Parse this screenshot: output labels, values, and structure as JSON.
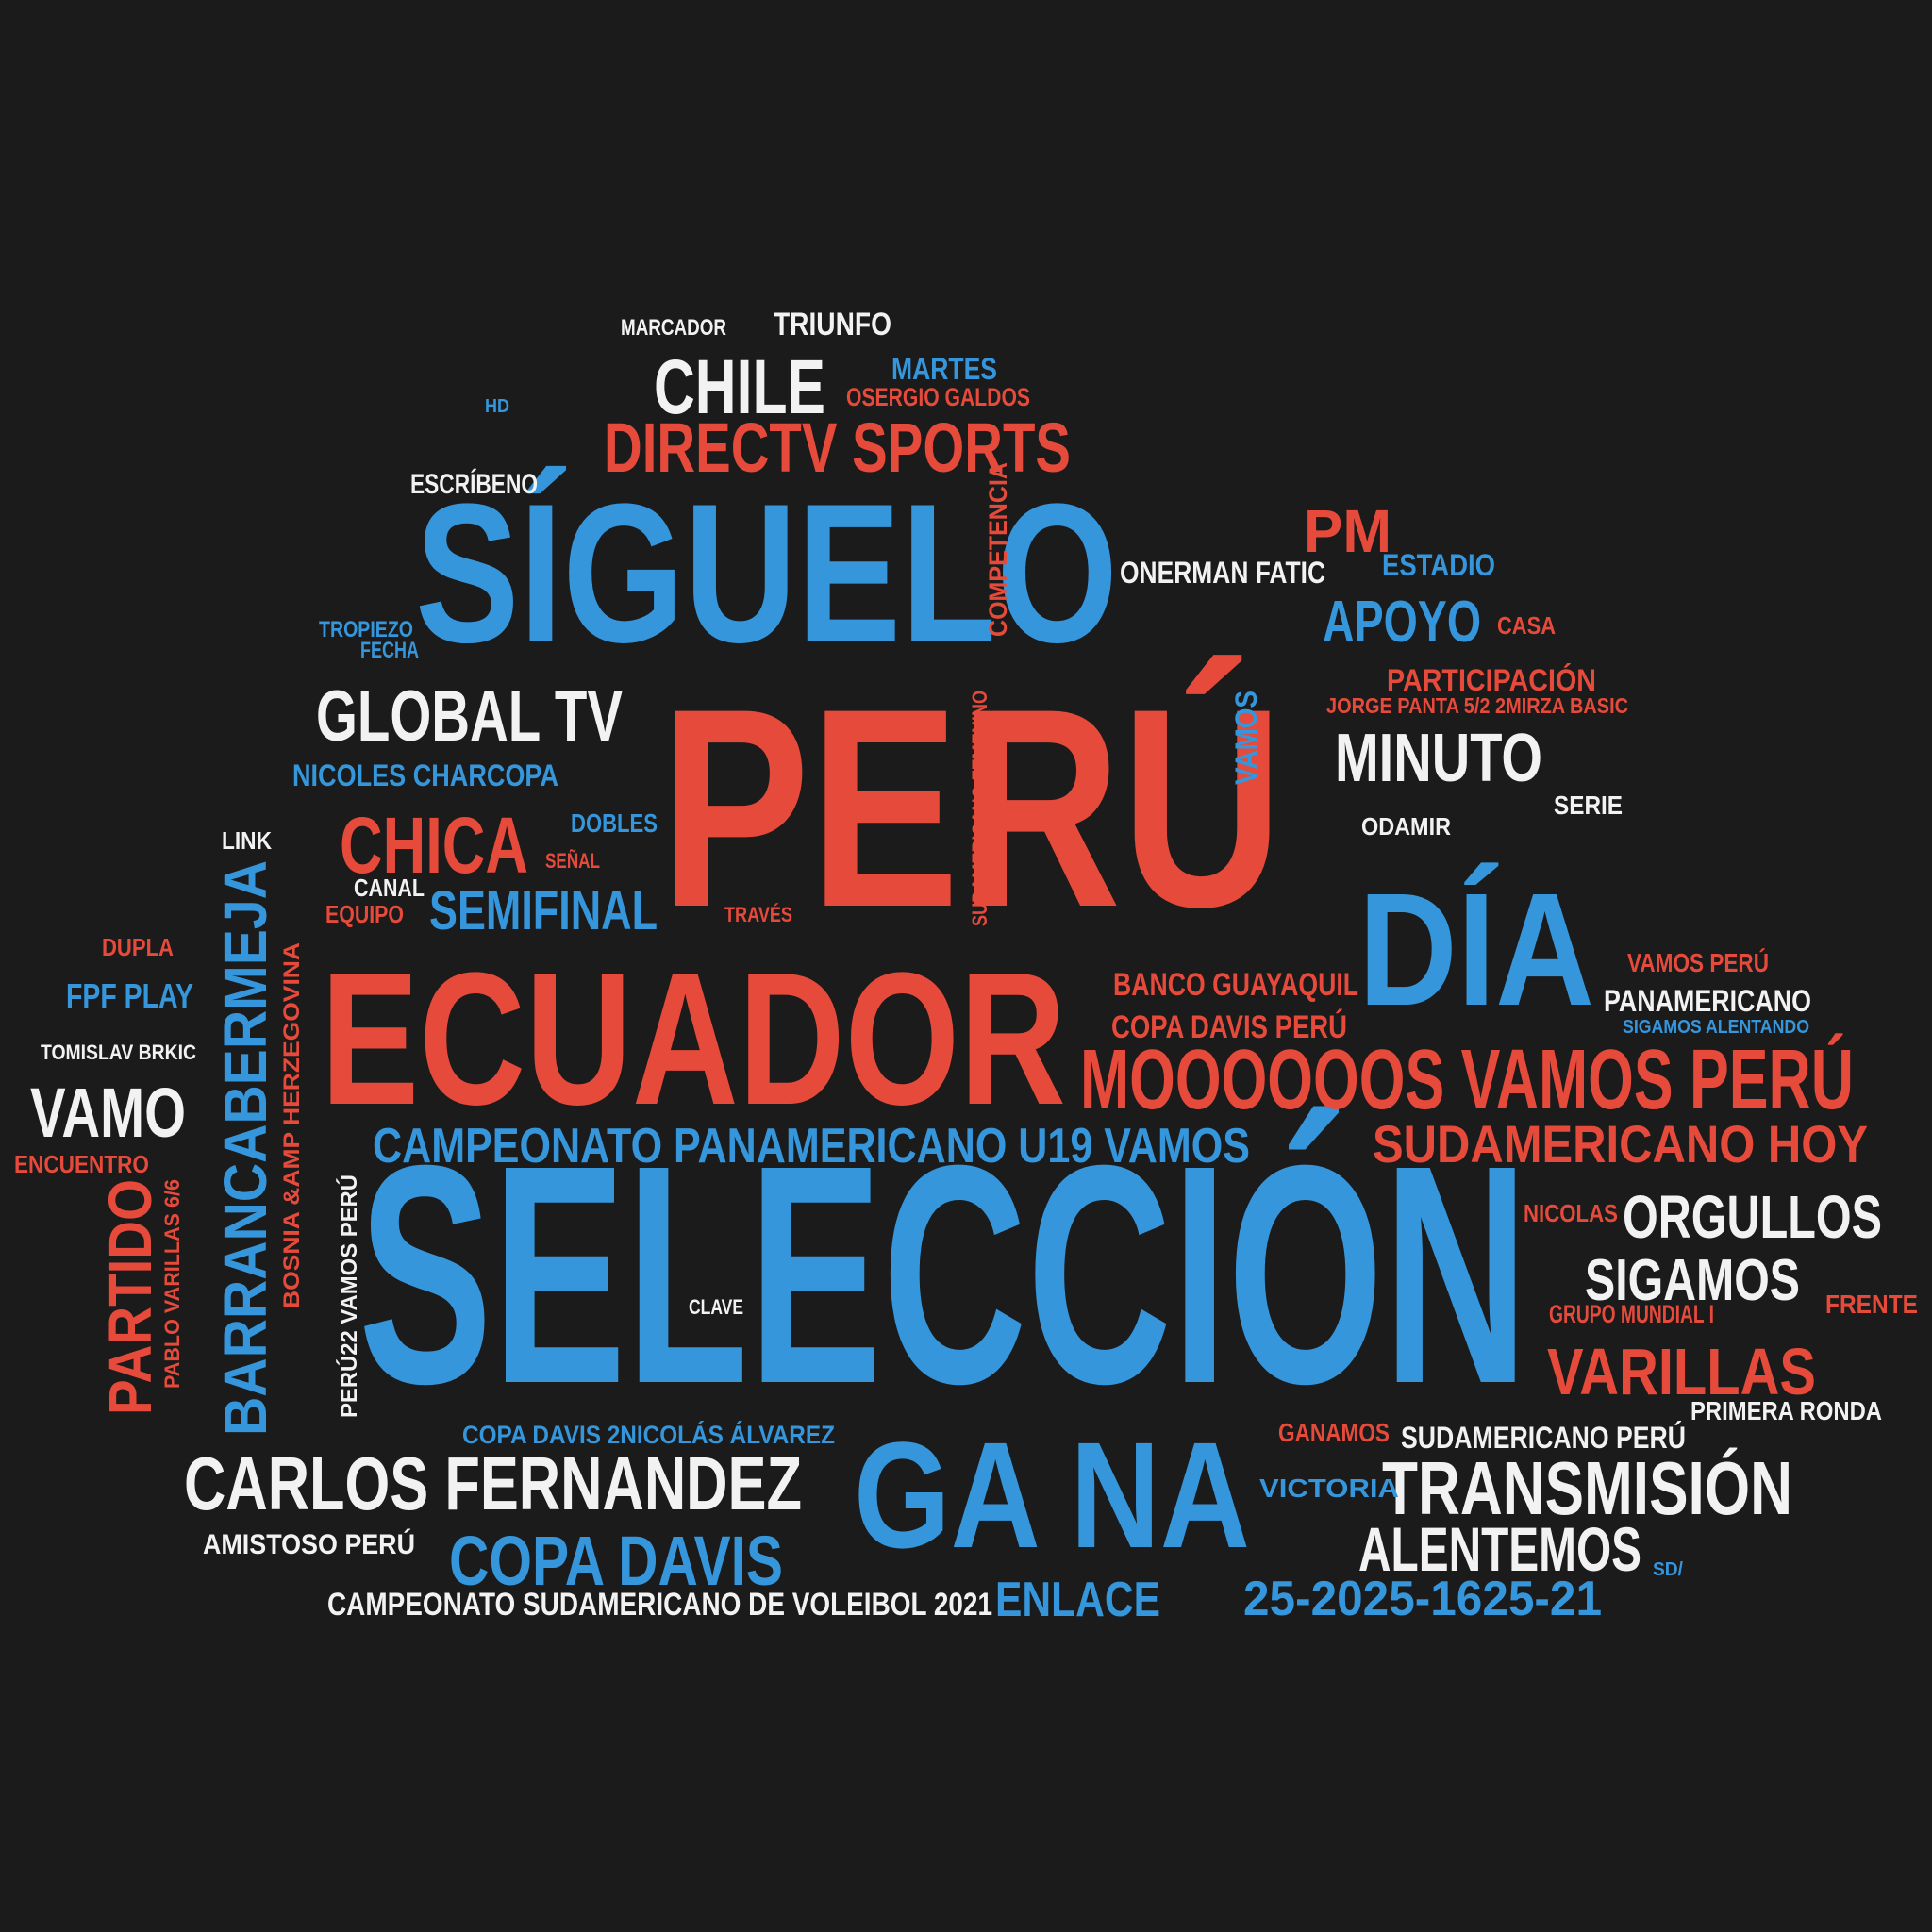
{
  "colors": {
    "background": "#1b1b1b",
    "red": "#e64a3b",
    "blue": "#3596dc",
    "white": "#f2f2f2"
  },
  "words": [
    {
      "text": "PERÚ",
      "color": "red"
    },
    {
      "text": "SELECCIÓN",
      "color": "blue"
    },
    {
      "text": "SÍGUELO",
      "color": "blue"
    },
    {
      "text": "ECUADOR",
      "color": "red"
    },
    {
      "text": "DÍA",
      "color": "blue"
    },
    {
      "text": "GA NA",
      "color": "blue"
    },
    {
      "text": "MOOOOOOS VAMOS PERÚ",
      "color": "red"
    },
    {
      "text": "DIRECTV SPORTS",
      "color": "red"
    },
    {
      "text": "CHILE",
      "color": "white"
    },
    {
      "text": "GLOBAL TV",
      "color": "white"
    },
    {
      "text": "CHICA",
      "color": "red"
    },
    {
      "text": "MINUTO",
      "color": "white"
    },
    {
      "text": "CARLOS FERNANDEZ",
      "color": "white"
    },
    {
      "text": "TRANSMISIÓN",
      "color": "white"
    },
    {
      "text": "BARRANCABERMEJA",
      "color": "blue"
    },
    {
      "text": "ORGULLOS",
      "color": "white"
    },
    {
      "text": "VARILLAS",
      "color": "red"
    },
    {
      "text": "SIGAMOS",
      "color": "white"
    },
    {
      "text": "ALENTEMOS",
      "color": "white"
    },
    {
      "text": "COPA DAVIS",
      "color": "blue"
    },
    {
      "text": "SUDAMERICANO HOY",
      "color": "red"
    },
    {
      "text": "CAMPEONATO PANAMERICANO U19 VAMOS",
      "color": "blue"
    },
    {
      "text": "PARTIDO",
      "color": "red"
    },
    {
      "text": "VAMO",
      "color": "white"
    },
    {
      "text": "SEMIFINAL",
      "color": "blue"
    },
    {
      "text": "APOYO",
      "color": "blue"
    },
    {
      "text": "PM",
      "color": "red"
    },
    {
      "text": "25-2025-1625-21",
      "color": "blue"
    },
    {
      "text": "ENLACE",
      "color": "blue"
    },
    {
      "text": "TRIUNFO",
      "color": "white"
    },
    {
      "text": "MARTES",
      "color": "blue"
    },
    {
      "text": "OSERGIO GALDOS",
      "color": "red"
    },
    {
      "text": "MARCADOR",
      "color": "white"
    },
    {
      "text": "HD",
      "color": "blue"
    },
    {
      "text": "ESCRÍBENO",
      "color": "white"
    },
    {
      "text": "COMPETENCIA",
      "color": "red"
    },
    {
      "text": "ONERMAN FATIC",
      "color": "white"
    },
    {
      "text": "ESTADIO",
      "color": "blue"
    },
    {
      "text": "CASA",
      "color": "red"
    },
    {
      "text": "TROPIEZO",
      "color": "blue"
    },
    {
      "text": "FECHA",
      "color": "blue"
    },
    {
      "text": "PARTICIPACIÓN",
      "color": "red"
    },
    {
      "text": "JORGE PANTA 5/2 2MIRZA BASIC",
      "color": "red"
    },
    {
      "text": "VAMOS",
      "color": "blue"
    },
    {
      "text": "SUDAMERICANO FEMENINO",
      "color": "red"
    },
    {
      "text": "NICOLES CHARCOPA",
      "color": "blue"
    },
    {
      "text": "DOBLES",
      "color": "blue"
    },
    {
      "text": "SEÑAL",
      "color": "red"
    },
    {
      "text": "LINK",
      "color": "white"
    },
    {
      "text": "CANAL",
      "color": "white"
    },
    {
      "text": "EQUIPO",
      "color": "red"
    },
    {
      "text": "TRAVÉS",
      "color": "red"
    },
    {
      "text": "ODAMIR",
      "color": "white"
    },
    {
      "text": "SERIE",
      "color": "white"
    },
    {
      "text": "DUPLA",
      "color": "red"
    },
    {
      "text": "FPF PLAY",
      "color": "blue"
    },
    {
      "text": "TOMISLAV BRKIC",
      "color": "white"
    },
    {
      "text": "ENCUENTRO",
      "color": "red"
    },
    {
      "text": "BOSNIA &AMP HERZEGOVINA",
      "color": "red"
    },
    {
      "text": "PABLO VARILLAS 6/6",
      "color": "red"
    },
    {
      "text": "PERÚ22 VAMOS PERÚ",
      "color": "white"
    },
    {
      "text": "BANCO GUAYAQUIL",
      "color": "red"
    },
    {
      "text": "COPA DAVIS PERÚ",
      "color": "red"
    },
    {
      "text": "VAMOS PERÚ",
      "color": "red"
    },
    {
      "text": "PANAMERICANO",
      "color": "white"
    },
    {
      "text": "SIGAMOS ALENTANDO",
      "color": "blue"
    },
    {
      "text": "NICOLAS",
      "color": "red"
    },
    {
      "text": "FRENTE",
      "color": "red"
    },
    {
      "text": "GRUPO MUNDIAL I",
      "color": "red"
    },
    {
      "text": "PRIMERA RONDA",
      "color": "white"
    },
    {
      "text": "CLAVE",
      "color": "white"
    },
    {
      "text": "COPA DAVIS  2NICOLÁS ÁLVAREZ",
      "color": "blue"
    },
    {
      "text": "GANAMOS",
      "color": "red"
    },
    {
      "text": "SUDAMERICANO PERÚ",
      "color": "white"
    },
    {
      "text": "VICTORIA",
      "color": "blue"
    },
    {
      "text": "AMISTOSO PERÚ",
      "color": "white"
    },
    {
      "text": "SD/",
      "color": "blue"
    },
    {
      "text": "CAMPEONATO SUDAMERICANO DE VOLEIBOL 2021",
      "color": "white"
    }
  ]
}
